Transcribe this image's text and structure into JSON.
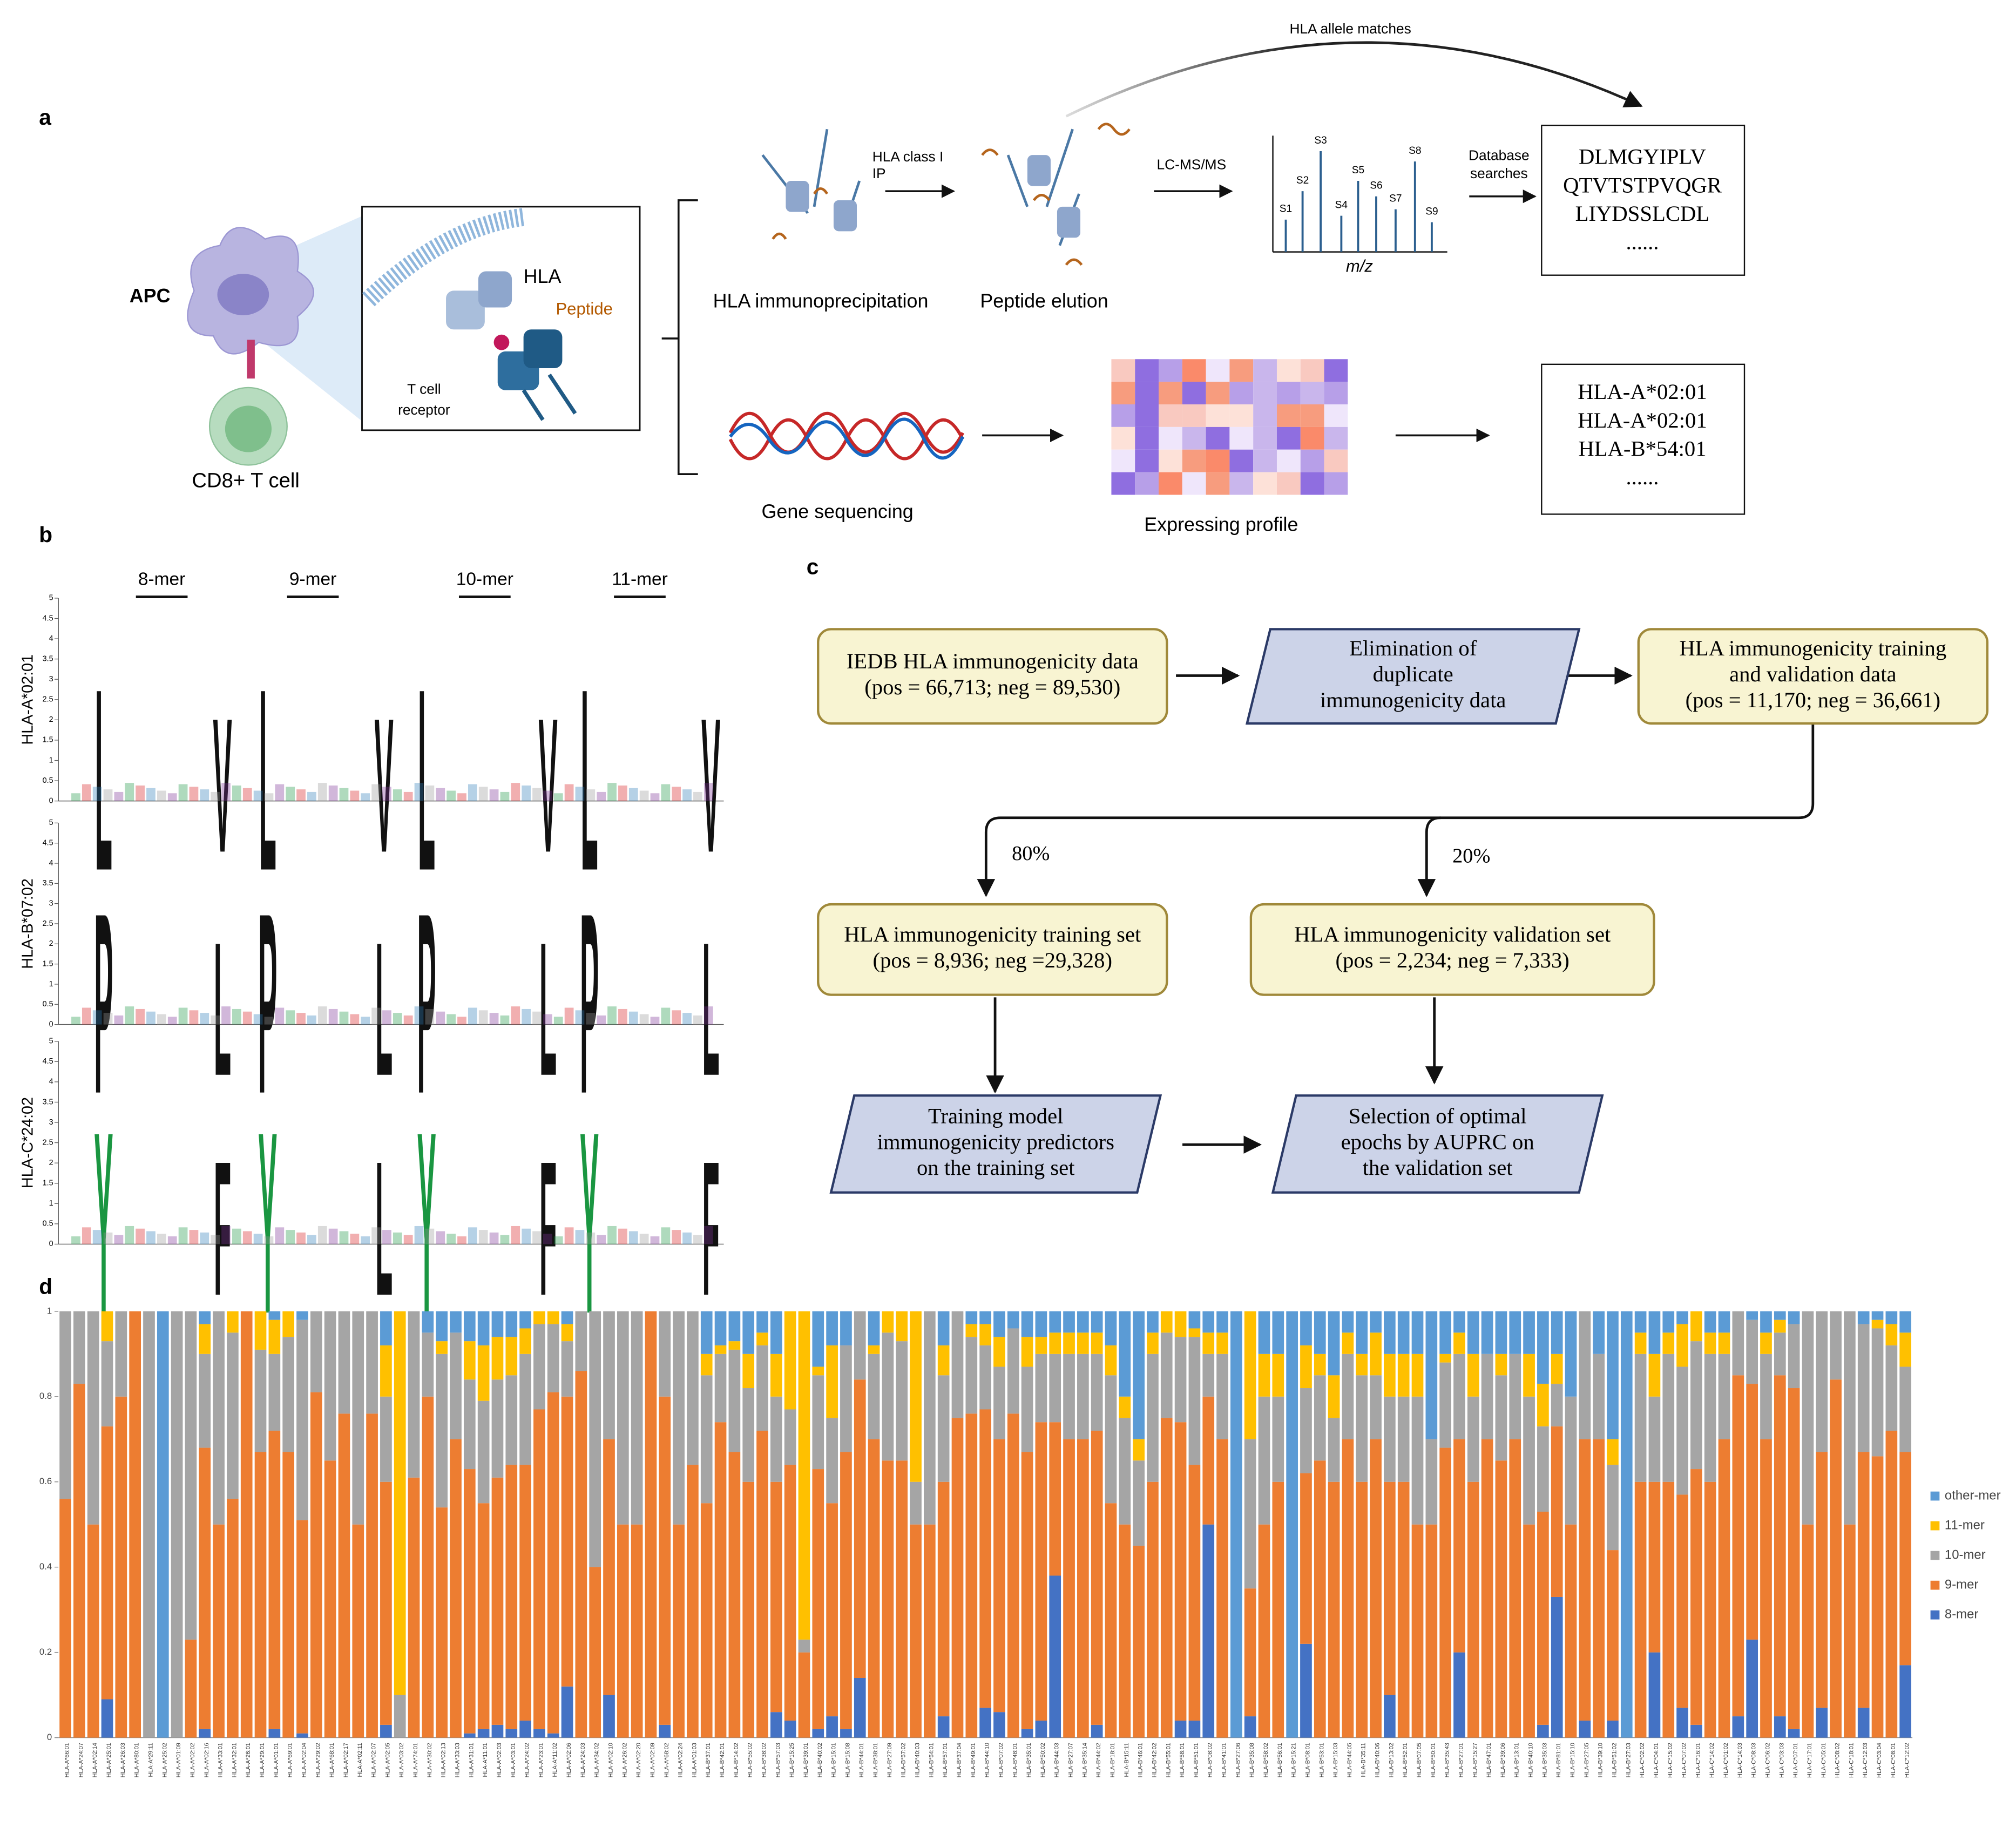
{
  "panel_labels": [
    "a",
    "b",
    "c",
    "d"
  ],
  "schematic": {
    "apc": "APC",
    "cd8": "CD8+ T cell",
    "hla": "HLA",
    "peptide": "Peptide",
    "tcr": [
      "T cell",
      "receptor"
    ],
    "ip": [
      "HLA class I",
      "IP"
    ],
    "lcms": "LC-MS/MS",
    "db": [
      "Database",
      "searches"
    ],
    "matches": "HLA allele matches",
    "hla_ip": "HLA immunoprecipitation",
    "elution": "Peptide elution",
    "mz": "m/z",
    "peaks": [
      "S1",
      "S2",
      "S3",
      "S4",
      "S5",
      "S6",
      "S7",
      "S8",
      "S9"
    ],
    "peptides": [
      "DLMGYIPLV",
      "QTVTSTPVQGR",
      "LIYDSSLCDL",
      "......"
    ],
    "gene": "Gene sequencing",
    "profile": "Expressing profile",
    "alleles": [
      "HLA-A*02:01",
      "HLA-A*02:01",
      "HLA-B*54:01",
      "......"
    ]
  },
  "logos": {
    "kmers": [
      "8-mer",
      "9-mer",
      "10-mer",
      "11-mer"
    ],
    "yticks": [
      0,
      0.5,
      1,
      1.5,
      2,
      2.5,
      3,
      3.5,
      4,
      4.5,
      5
    ],
    "rows": [
      {
        "allele": "HLA-A*02:01",
        "letters": [
          "L",
          "V",
          "L",
          "V",
          "L",
          "V",
          "L",
          "V"
        ]
      },
      {
        "allele": "HLA-B*07:02",
        "letters": [
          "P",
          "L",
          "P",
          "L",
          "P",
          "L",
          "P",
          "L"
        ]
      },
      {
        "allele": "HLA-C*24:02",
        "letters": [
          "Y",
          "F",
          "Y",
          "L",
          "Y",
          "F",
          "Y",
          "F"
        ]
      }
    ]
  },
  "flowchart": {
    "nodes": [
      {
        "lines": [
          "IEDB HLA immunogenicity data",
          "(pos = 66,713; neg = 89,530)"
        ]
      },
      {
        "lines": [
          "Elimination of",
          "duplicate",
          "immunogenicity data"
        ]
      },
      {
        "lines": [
          "HLA immunogenicity training",
          "and validation data",
          "(pos = 11,170; neg = 36,661)"
        ]
      },
      {
        "lines": [
          "HLA immunogenicity training set",
          "(pos = 8,936; neg =29,328)"
        ]
      },
      {
        "lines": [
          "HLA immunogenicity validation set",
          "(pos = 2,234; neg = 7,333)"
        ]
      },
      {
        "lines": [
          "Training model",
          "immunogenicity predictors",
          "on the training set"
        ]
      },
      {
        "lines": [
          "Selection of optimal",
          "epochs by AUPRC on",
          "the validation set"
        ]
      }
    ],
    "edge_labels": [
      "80%",
      "20%"
    ]
  },
  "chart_data": {
    "type": "bar",
    "stacked": true,
    "legend": "right",
    "ylim": [
      0,
      1
    ],
    "yticks": [
      0,
      0.2,
      0.4,
      0.6,
      0.8,
      1
    ],
    "categories": [
      "HLA-A*66:01",
      "HLA-A*24:07",
      "HLA-A*02:14",
      "HLA-A*25:01",
      "HLA-A*26:03",
      "HLA-A*80:01",
      "HLA-A*29:11",
      "HLA-A*25:02",
      "HLA-A*01:09",
      "HLA-A*02:02",
      "HLA-A*02:16",
      "HLA-A*33:01",
      "HLA-A*32:01",
      "HLA-A*26:01",
      "HLA-A*29:01",
      "HLA-A*01:01",
      "HLA-A*69:01",
      "HLA-A*02:04",
      "HLA-A*29:02",
      "HLA-A*68:01",
      "HLA-A*02:17",
      "HLA-A*02:11",
      "HLA-A*02:07",
      "HLA-A*02:05",
      "HLA-A*03:02",
      "HLA-A*74:01",
      "HLA-A*30:02",
      "HLA-A*02:13",
      "HLA-A*33:03",
      "HLA-A*31:01",
      "HLA-A*11:01",
      "HLA-A*02:03",
      "HLA-A*03:01",
      "HLA-A*24:02",
      "HLA-A*23:01",
      "HLA-A*11:02",
      "HLA-A*02:06",
      "HLA-A*24:03",
      "HLA-A*34:02",
      "HLA-A*02:10",
      "HLA-A*26:02",
      "HLA-A*02:20",
      "HLA-A*02:09",
      "HLA-A*68:02",
      "HLA-A*02:24",
      "HLA-A*01:03",
      "HLA-B*37:01",
      "HLA-B*42:01",
      "HLA-B*14:02",
      "HLA-B*55:02",
      "HLA-B*38:02",
      "HLA-B*57:03",
      "HLA-B*15:25",
      "HLA-B*39:01",
      "HLA-B*40:02",
      "HLA-B*15:01",
      "HLA-B*15:08",
      "HLA-B*44:01",
      "HLA-B*38:01",
      "HLA-B*27:09",
      "HLA-B*57:02",
      "HLA-B*40:03",
      "HLA-B*54:01",
      "HLA-B*57:01",
      "HLA-B*37:04",
      "HLA-B*49:01",
      "HLA-B*44:10",
      "HLA-B*07:02",
      "HLA-B*48:01",
      "HLA-B*35:01",
      "HLA-B*50:02",
      "HLA-B*44:03",
      "HLA-B*27:07",
      "HLA-B*35:14",
      "HLA-B*44:02",
      "HLA-B*18:01",
      "HLA-B*15:11",
      "HLA-B*46:01",
      "HLA-B*42:02",
      "HLA-B*55:01",
      "HLA-B*58:01",
      "HLA-B*51:01",
      "HLA-B*08:02",
      "HLA-B*41:01",
      "HLA-B*27:06",
      "HLA-B*35:08",
      "HLA-B*58:02",
      "HLA-B*56:01",
      "HLA-B*15:21",
      "HLA-B*08:01",
      "HLA-B*53:01",
      "HLA-B*15:03",
      "HLA-B*44:05",
      "HLA-B*35:11",
      "HLA-B*40:06",
      "HLA-B*13:02",
      "HLA-B*52:01",
      "HLA-B*07:05",
      "HLA-B*50:01",
      "HLA-B*35:43",
      "HLA-B*27:01",
      "HLA-B*15:27",
      "HLA-B*47:01",
      "HLA-B*39:06",
      "HLA-B*13:01",
      "HLA-B*40:10",
      "HLA-B*35:03",
      "HLA-B*81:01",
      "HLA-B*15:10",
      "HLA-B*27:05",
      "HLA-B*39:10",
      "HLA-B*51:02",
      "HLA-B*27:03",
      "HLA-C*02:02",
      "HLA-C*04:01",
      "HLA-C*15:02",
      "HLA-C*07:02",
      "HLA-C*16:01",
      "HLA-C*14:02",
      "HLA-C*01:02",
      "HLA-C*14:03",
      "HLA-C*08:03",
      "HLA-C*06:02",
      "HLA-C*03:03",
      "HLA-C*07:01",
      "HLA-C*17:01",
      "HLA-C*05:01",
      "HLA-C*08:02",
      "HLA-C*18:01",
      "HLA-C*12:03",
      "HLA-C*03:04",
      "HLA-C*08:01",
      "HLA-C*12:02"
    ],
    "series": [
      {
        "name": "8-mer",
        "color": "#4472c4",
        "values": [
          0,
          0,
          0,
          0.09,
          0,
          0,
          0,
          0,
          0,
          0,
          0.02,
          0,
          0,
          0,
          0,
          0.02,
          0,
          0.01,
          0,
          0,
          0,
          0,
          0,
          0.03,
          0,
          0,
          0,
          0,
          0,
          0.01,
          0.02,
          0.03,
          0.02,
          0.04,
          0.02,
          0.01,
          0.12,
          0,
          0,
          0.1,
          0,
          0,
          0,
          0.03,
          0,
          0,
          0,
          0,
          0,
          0,
          0,
          0.06,
          0.04,
          0,
          0.02,
          0.05,
          0.02,
          0.14,
          0,
          0,
          0,
          0,
          0,
          0.05,
          0,
          0,
          0.07,
          0.06,
          0,
          0.02,
          0.04,
          0.38,
          0,
          0,
          0.03,
          0,
          0,
          0,
          0,
          0,
          0.04,
          0.04,
          0.5,
          0,
          0,
          0.05,
          0,
          0,
          0,
          0.22,
          0,
          0,
          0,
          0,
          0,
          0.1,
          0,
          0,
          0,
          0,
          0.2,
          0,
          0,
          0,
          0,
          0,
          0.03,
          0.33,
          0,
          0.04,
          0,
          0.04,
          0,
          0,
          0.2,
          0,
          0.07,
          0.03,
          0,
          0,
          0.05,
          0.23,
          0,
          0.05,
          0.02,
          0,
          0.07,
          0,
          0,
          0.07,
          0,
          0,
          0.17
        ]
      },
      {
        "name": "9-mer",
        "color": "#ed7d31",
        "values": [
          0.56,
          0.83,
          0.5,
          0.64,
          0.8,
          1,
          0,
          0,
          0,
          0.23,
          0.66,
          0.5,
          0.56,
          1,
          0.67,
          0.7,
          0.67,
          0.5,
          0.81,
          0.65,
          0.76,
          0.5,
          0.76,
          0.57,
          0,
          0.61,
          0.8,
          0.54,
          0.7,
          0.62,
          0.53,
          0.58,
          0.62,
          0.6,
          0.75,
          0.8,
          0.68,
          0.86,
          0.4,
          0.6,
          0.5,
          0.5,
          1,
          0.77,
          0.5,
          0.64,
          0.55,
          0.74,
          0.67,
          0.6,
          0.72,
          0.54,
          0.6,
          0.2,
          0.61,
          0.5,
          0.65,
          0.7,
          0.7,
          0.65,
          0.65,
          0.5,
          0.5,
          0.55,
          0.75,
          0.76,
          0.7,
          0.64,
          0.76,
          0.65,
          0.7,
          0.36,
          0.7,
          0.7,
          0.69,
          0.55,
          0.5,
          0.45,
          0.6,
          0.75,
          0.7,
          0.6,
          0.3,
          0.7,
          0,
          0.3,
          0.5,
          0.6,
          0,
          0.4,
          0.65,
          0.6,
          0.7,
          0.6,
          0.7,
          0.5,
          0.6,
          0.5,
          0.5,
          0.68,
          0.5,
          0.6,
          0.7,
          0.65,
          0.7,
          0.5,
          0.5,
          0.4,
          0.5,
          0.66,
          0.7,
          0.4,
          0,
          0.6,
          0.4,
          0.6,
          0.5,
          0.6,
          0.6,
          0.7,
          0.8,
          0.6,
          0.7,
          0.8,
          0.8,
          0.5,
          0.6,
          0.84,
          0.5,
          0.6,
          0.66,
          0.72,
          0.5
        ]
      },
      {
        "name": "10-mer",
        "color": "#a5a5a5",
        "values": [
          0.44,
          0.17,
          0.5,
          0.2,
          0.2,
          0,
          1,
          0,
          1,
          0.77,
          0.22,
          0.5,
          0.39,
          0,
          0.24,
          0.18,
          0.27,
          0.47,
          0.19,
          0.35,
          0.24,
          0.5,
          0.24,
          0.2,
          0.1,
          0.39,
          0.15,
          0.36,
          0.25,
          0.21,
          0.24,
          0.23,
          0.21,
          0.26,
          0.2,
          0.16,
          0.13,
          0.14,
          0.6,
          0.3,
          0.5,
          0.5,
          0,
          0.2,
          0.5,
          0.36,
          0.3,
          0.16,
          0.24,
          0.22,
          0.2,
          0.2,
          0.13,
          0.03,
          0.22,
          0.2,
          0.25,
          0.16,
          0.2,
          0.3,
          0.28,
          0.1,
          0.5,
          0.25,
          0.25,
          0.18,
          0.15,
          0.17,
          0.2,
          0.2,
          0.16,
          0.16,
          0.2,
          0.2,
          0.18,
          0.3,
          0.25,
          0.2,
          0.3,
          0.2,
          0.2,
          0.3,
          0.1,
          0.2,
          0,
          0.35,
          0.3,
          0.2,
          0,
          0.2,
          0.2,
          0.15,
          0.2,
          0.25,
          0.15,
          0.2,
          0.2,
          0.3,
          0.2,
          0.2,
          0.2,
          0.2,
          0.2,
          0.2,
          0.2,
          0.3,
          0.2,
          0.1,
          0.3,
          0.3,
          0.2,
          0.2,
          0,
          0.3,
          0.2,
          0.3,
          0.3,
          0.3,
          0.3,
          0.2,
          0.15,
          0.15,
          0.2,
          0.1,
          0.15,
          0.5,
          0.33,
          0.16,
          0.5,
          0.3,
          0.3,
          0.2,
          0.2
        ]
      },
      {
        "name": "11-mer",
        "color": "#ffc000",
        "values": [
          0,
          0,
          0,
          0.07,
          0,
          0,
          0,
          0,
          0,
          0,
          0.07,
          0,
          0.05,
          0,
          0.09,
          0.08,
          0.06,
          0,
          0,
          0,
          0,
          0,
          0,
          0.12,
          0.9,
          0,
          0,
          0.03,
          0,
          0.09,
          0.13,
          0.1,
          0.09,
          0.06,
          0.03,
          0.03,
          0.04,
          0,
          0,
          0,
          0,
          0,
          0,
          0,
          0,
          0,
          0.05,
          0.02,
          0.02,
          0.08,
          0.03,
          0.1,
          0.23,
          0.77,
          0.02,
          0.17,
          0,
          0,
          0.02,
          0.05,
          0.07,
          0.4,
          0,
          0.07,
          0,
          0.03,
          0.05,
          0.07,
          0,
          0.07,
          0.04,
          0.05,
          0.05,
          0.05,
          0.05,
          0.07,
          0.05,
          0.05,
          0.05,
          0.05,
          0.06,
          0.02,
          0.05,
          0.05,
          0,
          0.3,
          0.1,
          0.1,
          0,
          0.1,
          0.05,
          0.1,
          0.05,
          0.05,
          0.1,
          0.1,
          0.1,
          0.1,
          0,
          0.02,
          0.05,
          0.1,
          0,
          0.05,
          0,
          0.1,
          0.1,
          0.07,
          0,
          0,
          0,
          0.06,
          0,
          0.05,
          0.1,
          0.05,
          0.1,
          0.07,
          0.05,
          0.05,
          0,
          0,
          0.05,
          0.03,
          0,
          0,
          0,
          0,
          0,
          0,
          0.02,
          0.05,
          0.08
        ]
      },
      {
        "name": "other-mer",
        "color": "#5b9bd5",
        "values": [
          0,
          0,
          0,
          0,
          0,
          0,
          0,
          1,
          0,
          0,
          0.03,
          0,
          0,
          0,
          0,
          0.02,
          0,
          0.02,
          0,
          0,
          0,
          0,
          0,
          0.08,
          0,
          0,
          0.05,
          0.07,
          0.05,
          0.07,
          0.08,
          0.06,
          0.06,
          0.04,
          0,
          0,
          0.03,
          0,
          0,
          0,
          0,
          0,
          0,
          0,
          0,
          0,
          0.1,
          0.08,
          0.07,
          0.1,
          0.05,
          0.1,
          0,
          0,
          0.13,
          0.08,
          0.08,
          0,
          0.08,
          0,
          0,
          0,
          0,
          0.08,
          0,
          0.03,
          0.03,
          0.06,
          0.04,
          0.06,
          0.06,
          0.05,
          0.05,
          0.05,
          0.05,
          0.08,
          0.2,
          0.3,
          0.05,
          0,
          0,
          0.04,
          0.05,
          0.05,
          1,
          0,
          0.1,
          0.1,
          1,
          0.08,
          0.1,
          0.15,
          0.05,
          0.1,
          0.05,
          0.1,
          0.1,
          0.1,
          0.3,
          0.1,
          0.05,
          0.1,
          0.1,
          0.1,
          0.1,
          0.1,
          0.17,
          0.1,
          0.2,
          0,
          0.1,
          0.3,
          1,
          0.05,
          0.1,
          0.05,
          0.03,
          0,
          0.05,
          0.05,
          0,
          0.02,
          0.05,
          0.02,
          0.03,
          0,
          0,
          0,
          0,
          0.03,
          0.02,
          0.03,
          0.05
        ]
      }
    ]
  }
}
